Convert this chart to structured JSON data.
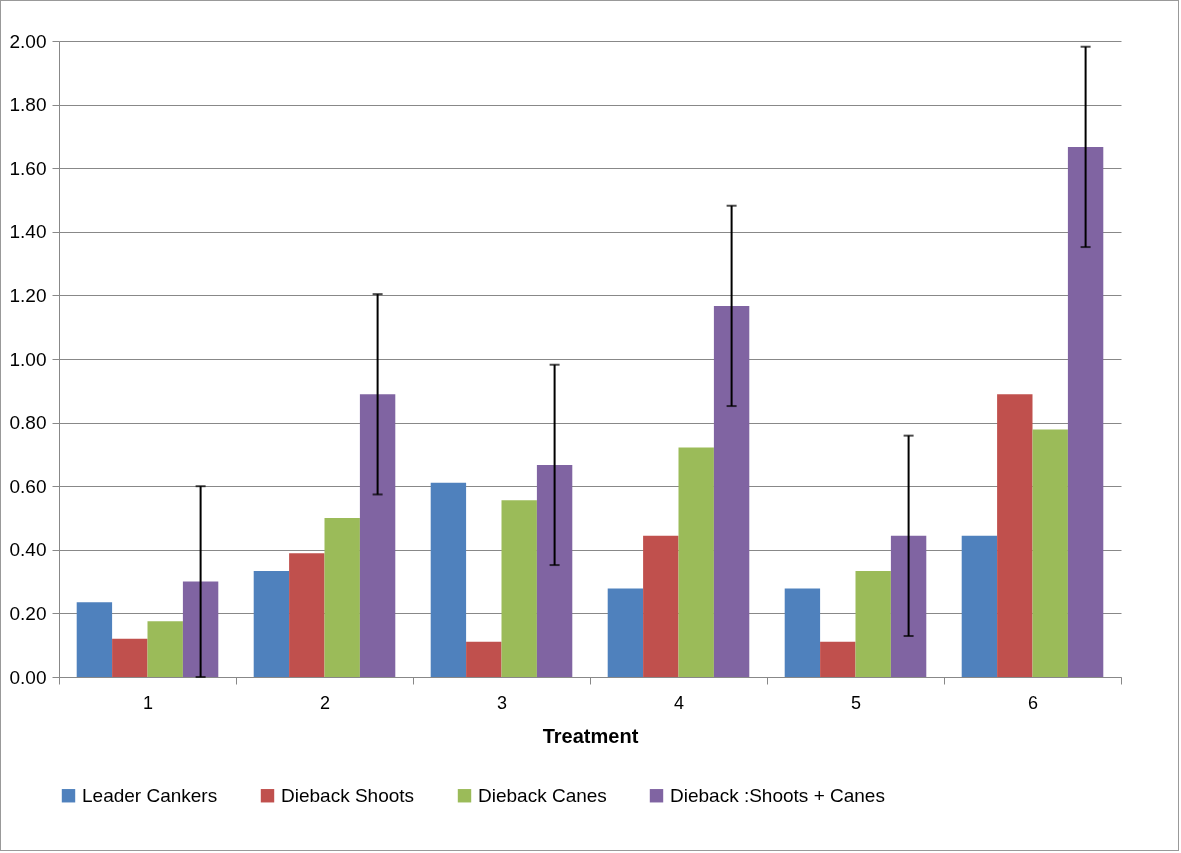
{
  "chart_data": {
    "type": "bar",
    "xlabel": "Treatment",
    "categories": [
      "1",
      "2",
      "3",
      "4",
      "5",
      "6"
    ],
    "series": [
      {
        "name": "Leader Cankers",
        "color": "#4f81bd",
        "values": [
          0.235,
          0.333,
          0.611,
          0.278,
          0.278,
          0.444
        ]
      },
      {
        "name": "Dieback Shoots",
        "color": "#c0504d",
        "values": [
          0.12,
          0.389,
          0.111,
          0.444,
          0.111,
          0.889
        ]
      },
      {
        "name": "Dieback Canes",
        "color": "#9bbb59",
        "values": [
          0.175,
          0.5,
          0.556,
          0.722,
          0.333,
          0.778
        ]
      },
      {
        "name": "Dieback :Shoots + Canes",
        "color": "#8064a2",
        "values": [
          0.3,
          0.889,
          0.667,
          1.167,
          0.444,
          1.667
        ],
        "errors": [
          0.3,
          0.315,
          0.315,
          0.315,
          0.315,
          0.315
        ]
      }
    ],
    "ylim": [
      0,
      2
    ],
    "yticks": [
      {
        "value": 0,
        "label": "0.00"
      },
      {
        "value": 0.2,
        "label": "0.20"
      },
      {
        "value": 0.4,
        "label": "0.40"
      },
      {
        "value": 0.6,
        "label": "0.60"
      },
      {
        "value": 0.8,
        "label": "0.80"
      },
      {
        "value": 1,
        "label": "1.00"
      },
      {
        "value": 1.2,
        "label": "1.20"
      },
      {
        "value": 1.4,
        "label": "1.40"
      },
      {
        "value": 1.6,
        "label": "1.60"
      },
      {
        "value": 1.8,
        "label": "1.80"
      },
      {
        "value": 2,
        "label": "2.00"
      }
    ],
    "grid": "y",
    "legend": "bottom"
  }
}
